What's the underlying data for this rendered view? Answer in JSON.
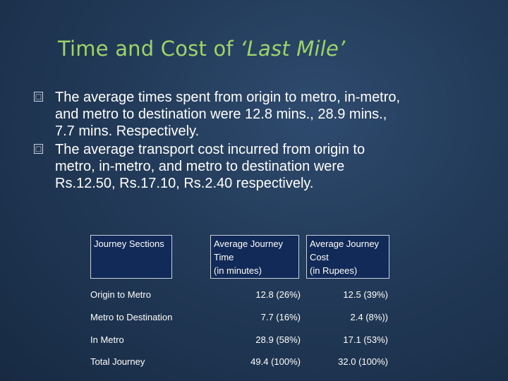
{
  "slide": {
    "title_plain": "Time and Cost of ",
    "title_italic": "‘Last Mile’",
    "bullets": [
      {
        "marker": "□",
        "lines": [
          "The average times spent from origin to metro, in-metro,",
          "and metro to destination were 12.8 mins., 28.9 mins.,",
          "7.7 mins. Respectively."
        ]
      },
      {
        "marker": "□",
        "lines": [
          "The average transport cost incurred from origin to",
          "metro, in-metro, and metro to destination were",
          "Rs.12.50, Rs.17.10, Rs.2.40 respectively."
        ]
      }
    ]
  },
  "table": {
    "headers": [
      [
        "Journey Sections"
      ],
      [
        "Average Journey",
        "Time",
        "(in minutes)"
      ],
      [
        "Average Journey",
        "Cost",
        "(in Rupees)"
      ]
    ],
    "rows": [
      [
        "Origin to Metro",
        "12.8   (26%)",
        "12.5   (39%)"
      ],
      [
        "Metro to Destination",
        "7.7   (16%)",
        "2.4    (8%))"
      ],
      [
        "In Metro",
        "28.9   (58%)",
        "17.1   (53%)"
      ],
      [
        "Total Journey",
        "49.4 (100%)",
        "32.0 (100%)"
      ]
    ]
  },
  "colors": {
    "title": "#9ed36a",
    "background": "#223a58",
    "header_fill": "#112a58",
    "text": "#ffffff"
  }
}
